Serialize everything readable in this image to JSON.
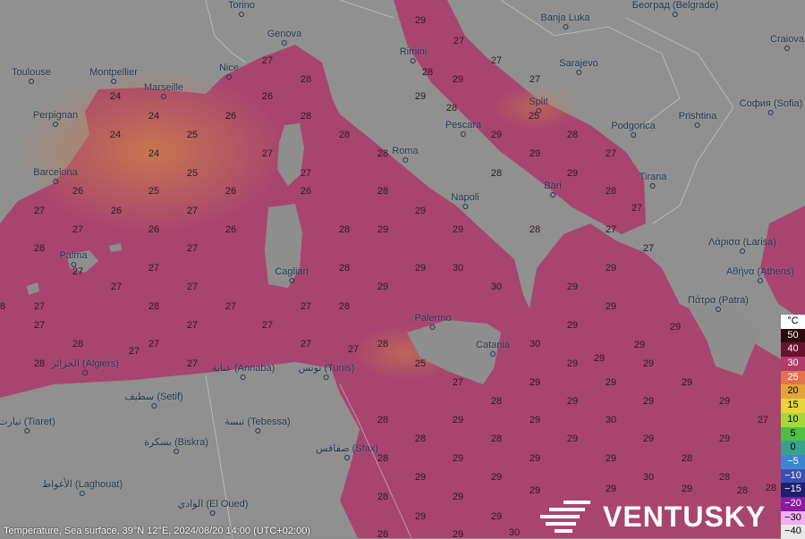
{
  "colors": {
    "land": "#8e8e8e",
    "sea": "#a8456f",
    "sea_warm": "#c9784e"
  },
  "caption": "Temperature, Sea surface, 39°N 12°E, 2024/08/20 14:00 (UTC+02:00)",
  "logo": {
    "text": "VENTUSKY",
    "icon": "wind-lines-icon"
  },
  "legend": {
    "unit": "°C",
    "items": [
      {
        "label": "50",
        "color": "#2b0a12",
        "text": "#fff"
      },
      {
        "label": "40",
        "color": "#6a1230",
        "text": "#fff"
      },
      {
        "label": "30",
        "color": "#b13b6a",
        "text": "#fff"
      },
      {
        "label": "25",
        "color": "#e2734e",
        "text": "#fff"
      },
      {
        "label": "20",
        "color": "#e4a43a",
        "text": "#000"
      },
      {
        "label": "15",
        "color": "#e6d63a",
        "text": "#000"
      },
      {
        "label": "10",
        "color": "#a6d83c",
        "text": "#000"
      },
      {
        "label": "5",
        "color": "#4fbf45",
        "text": "#000"
      },
      {
        "label": "0",
        "color": "#3aa18e",
        "text": "#000"
      },
      {
        "label": "−5",
        "color": "#3b86cf",
        "text": "#fff"
      },
      {
        "label": "−10",
        "color": "#3a4fb0",
        "text": "#fff"
      },
      {
        "label": "−15",
        "color": "#1f1f6e",
        "text": "#fff"
      },
      {
        "label": "−20",
        "color": "#8a1aa0",
        "text": "#fff"
      },
      {
        "label": "−30",
        "color": "#f0b0ee",
        "text": "#000"
      },
      {
        "label": "−40",
        "color": "#e8e8e8",
        "text": "#000"
      }
    ]
  },
  "cities": [
    "Torino",
    "Београд (Belgrade)",
    "Craiova",
    "Genova",
    "Banja Luka",
    "Rimini",
    "Toulouse",
    "Montpellier",
    "Nice",
    "Sarajevo",
    "Marseille",
    "Split",
    "София (Sofia)",
    "Perpignan",
    "Pescara",
    "Podgorica",
    "Prishtina",
    "Roma",
    "Barcelona",
    "Tirana",
    "Napoli",
    "Bari",
    "Λάρισα (Larisa)",
    "Palma",
    "Cagliari",
    "Πάτρα (Patra)",
    "Αθήνα (Athens)",
    "Palermo",
    "Catania",
    "الجزائر (Algiers)",
    "عنابة (Annaba)",
    "تونس (Tunis)",
    "سطيف (Setif)",
    "تيارت (Tiaret)",
    "تبسة (Tebessa)",
    "بسكرة (Biskra)",
    "صفاقس (Sfax)",
    "الأغواط (Laghouat)",
    "الوادي (El Oued)"
  ],
  "temperatures": [
    29,
    27,
    27,
    28,
    27,
    28,
    29,
    27,
    24,
    26,
    29,
    24,
    26,
    28,
    28,
    25,
    24,
    25,
    28,
    29,
    28,
    24,
    27,
    28,
    29,
    27,
    25,
    27,
    28,
    29,
    27,
    26,
    25,
    26,
    26,
    28,
    28,
    27,
    26,
    27,
    29,
    27,
    26,
    26,
    28,
    29,
    29,
    28,
    27,
    28,
    27,
    27,
    27,
    27,
    28,
    29,
    30,
    29,
    27,
    27,
    29,
    30,
    29,
    28,
    27,
    28,
    27,
    27,
    28,
    29,
    29,
    27,
    27,
    27,
    29,
    29,
    28,
    27,
    27,
    28,
    30,
    29,
    28,
    27,
    27,
    27,
    25,
    29,
    29,
    27,
    29,
    29,
    29,
    28,
    29,
    29,
    29,
    28,
    29,
    29,
    30,
    27,
    28,
    28,
    29,
    29,
    29,
    28,
    29,
    29,
    29,
    28,
    29,
    29,
    30,
    28,
    28,
    29,
    29,
    29,
    29,
    29,
    29,
    28,
    28,
    29,
    30,
    28
  ]
}
